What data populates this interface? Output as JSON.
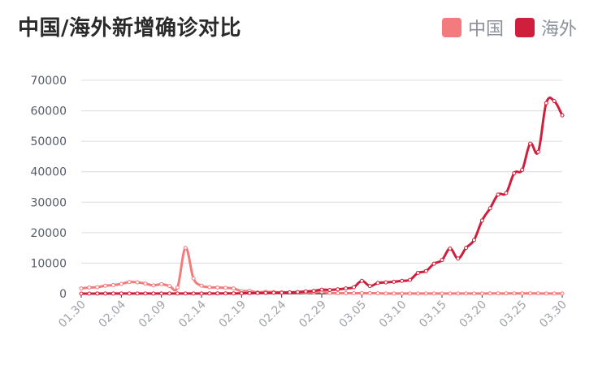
{
  "title": "中国/海外新增确诊对比",
  "legend": [
    {
      "name": "中国",
      "color": "#f37b7d"
    },
    {
      "name": "海外",
      "color": "#d01f3c"
    }
  ],
  "chart_data": {
    "type": "line",
    "title": "中国/海外新增确诊对比",
    "legend_position": "top-right",
    "grid": true,
    "ylim": [
      0,
      70000
    ],
    "yticks": [
      0,
      10000,
      20000,
      30000,
      40000,
      50000,
      60000,
      70000
    ],
    "x": [
      "01.30",
      "01.31",
      "02.01",
      "02.02",
      "02.03",
      "02.04",
      "02.05",
      "02.06",
      "02.07",
      "02.08",
      "02.09",
      "02.10",
      "02.11",
      "02.12",
      "02.13",
      "02.14",
      "02.15",
      "02.16",
      "02.17",
      "02.18",
      "02.19",
      "02.20",
      "02.21",
      "02.22",
      "02.23",
      "02.24",
      "02.25",
      "02.26",
      "02.27",
      "02.28",
      "02.29",
      "03.01",
      "03.02",
      "03.03",
      "03.04",
      "03.05",
      "03.06",
      "03.07",
      "03.08",
      "03.09",
      "03.10",
      "03.11",
      "03.12",
      "03.13",
      "03.14",
      "03.15",
      "03.16",
      "03.17",
      "03.18",
      "03.19",
      "03.20",
      "03.21",
      "03.22",
      "03.23",
      "03.24",
      "03.25",
      "03.26",
      "03.27",
      "03.28",
      "03.29",
      "03.30"
    ],
    "xtick_labels": [
      "01.30",
      "02.04",
      "02.09",
      "02.14",
      "02.19",
      "02.24",
      "02.29",
      "03.05",
      "03.10",
      "03.15",
      "03.20",
      "03.25",
      "03.30"
    ],
    "series": [
      {
        "name": "中国",
        "color": "#f37b7d",
        "values": [
          1700,
          2000,
          2100,
          2600,
          2800,
          3200,
          3800,
          3700,
          3300,
          2700,
          3100,
          2500,
          2000,
          15000,
          5000,
          2600,
          2100,
          2000,
          1900,
          1700,
          800,
          900,
          400,
          600,
          500,
          400,
          400,
          430,
          330,
          420,
          570,
          200,
          120,
          120,
          140,
          150,
          140,
          100,
          40,
          20,
          20,
          20,
          20,
          20,
          20,
          20,
          20,
          20,
          30,
          40,
          40,
          50,
          50,
          50,
          60,
          70,
          70,
          60,
          40,
          40,
          40
        ]
      },
      {
        "name": "海外",
        "color": "#d01f3c",
        "values": [
          10,
          10,
          20,
          20,
          20,
          20,
          30,
          30,
          30,
          20,
          40,
          30,
          30,
          30,
          30,
          40,
          50,
          50,
          60,
          80,
          90,
          150,
          180,
          220,
          270,
          300,
          400,
          500,
          700,
          900,
          1300,
          1200,
          1400,
          1700,
          2100,
          4200,
          2500,
          3500,
          3700,
          3900,
          4200,
          4500,
          6800,
          7400,
          9800,
          11000,
          14800,
          11500,
          15000,
          17600,
          24000,
          28000,
          32500,
          33000,
          39500,
          40600,
          49200,
          46500,
          62500,
          63200,
          58500
        ]
      }
    ]
  }
}
